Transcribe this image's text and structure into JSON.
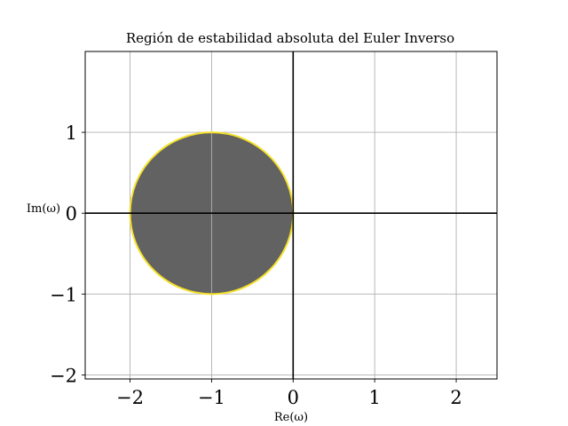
{
  "chart_data": {
    "type": "area",
    "title": "Región de estabilidad absoluta del Euler Inverso",
    "xlabel": "Re(ω)",
    "ylabel": "Im(ω)",
    "xlim": [
      -2.55,
      2.5
    ],
    "ylim": [
      -2.05,
      2.0
    ],
    "xticks": [
      -2,
      -1,
      0,
      1,
      2
    ],
    "yticks": [
      -2,
      -1,
      0,
      1
    ],
    "xtick_labels": [
      "−2",
      "−1",
      "0",
      "1",
      "2"
    ],
    "ytick_labels": [
      "−2",
      "−1",
      "0",
      "1"
    ],
    "grid": true,
    "axis_lines": {
      "x": 0,
      "y": 0,
      "color": "#000000"
    },
    "region": {
      "shape": "disk",
      "center": [
        -1,
        0
      ],
      "radius": 1,
      "fill_color": "#626262",
      "edge_color": "#f5e12a"
    },
    "colors": {
      "grid": "#b0b0b0",
      "fill": "#626262",
      "edge": "#f5e12a",
      "axes": "#000000"
    }
  }
}
